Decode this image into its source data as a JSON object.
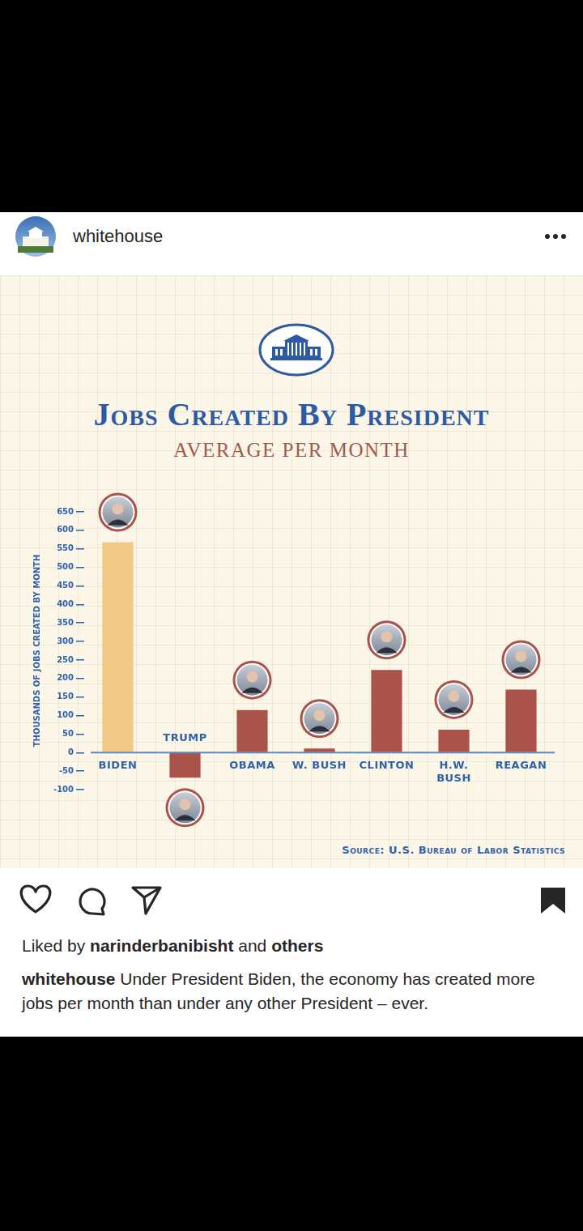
{
  "post": {
    "account": "whitehouse",
    "liked_by": {
      "prefix": "Liked by",
      "user": "narinderbanibisht",
      "middle": "and",
      "suffix": "others"
    },
    "caption": {
      "account": "whitehouse",
      "text": "Under President Biden, the economy has created more jobs per month than under any other President – ever."
    }
  },
  "chart_data": {
    "type": "bar",
    "title": "Jobs Created By President",
    "subtitle": "AVERAGE PER MONTH",
    "y_label": "THOUSANDS OF JOBS CREATED BY MONTH",
    "categories": [
      "BIDEN",
      "TRUMP",
      "OBAMA",
      "W. BUSH",
      "CLINTON",
      [
        "H.W.",
        "BUSH"
      ],
      "REAGAN"
    ],
    "values": [
      568,
      -68,
      115,
      11,
      223,
      62,
      170
    ],
    "colors": [
      "#efc985",
      "#a9534a",
      "#a9534a",
      "#a9534a",
      "#a9534a",
      "#a9534a",
      "#a9534a"
    ],
    "ylim": [
      -100,
      650
    ],
    "yticks": [
      -100,
      -50,
      0,
      50,
      100,
      150,
      200,
      250,
      300,
      350,
      400,
      450,
      500,
      550,
      600,
      650
    ],
    "grid": false,
    "source": "Source: U.S. Bureau of Labor Statistics"
  }
}
